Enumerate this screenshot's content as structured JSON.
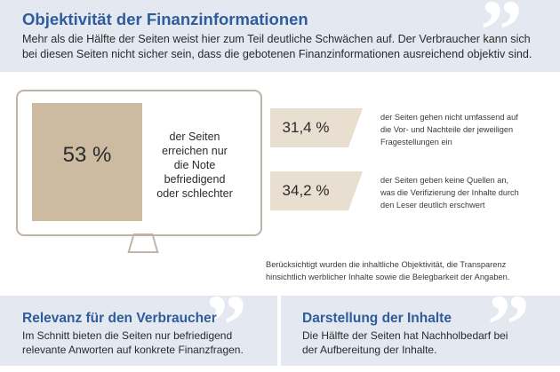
{
  "header": {
    "title": "Objektivität der Finanzinformationen",
    "text_line1": "Mehr als die Hälfte der Seiten weist hier zum Teil deutliche Schwächen auf. Der Verbraucher kann sich",
    "text_line2": "bei diesen Seiten nicht sicher sein, dass die gebotenen Finanzinformationen ausreichend objektiv sind."
  },
  "monitor": {
    "value": "53 %",
    "label_lines": [
      "der Seiten",
      "erreichen nur",
      "die Note",
      "befriedigend",
      "oder schlechter"
    ]
  },
  "stats": [
    {
      "value": "31,4 %",
      "desc_lines": [
        "der Seiten gehen nicht umfassend auf",
        "die Vor- und Nachteile der jeweiligen",
        "Fragestellungen ein"
      ]
    },
    {
      "value": "34,2 %",
      "desc_lines": [
        "der Seiten geben keine Quellen an,",
        "was die Verifizierung der Inhalte durch",
        "den Leser deutlich erschwert"
      ]
    }
  ],
  "note": {
    "line1": "Berücksichtigt wurden die inhaltliche Objektivität, die Transparenz",
    "line2": "hinsichtlich werblicher Inhalte sowie die Belegbarkeit der Angaben."
  },
  "bottom_left": {
    "title": "Relevanz für den Verbraucher",
    "line1": "Im Schnitt bieten die Seiten nur befriedigend",
    "line2": "relevante Anworten auf konkrete Finanzfragen."
  },
  "bottom_right": {
    "title": "Darstellung der Inhalte",
    "line1": "Die Hälfte der Seiten hat Nachholbedarf bei",
    "line2": "der Aufbereitung der Inhalte."
  },
  "icons": {
    "quote": "quotation-mark-icon",
    "monitor": "monitor-icon"
  },
  "colors": {
    "title_blue": "#2f5c9b",
    "band_blue": "#e3e8f1",
    "beige": "#ccbaa1",
    "monitor_outline": "#bdb4a6"
  }
}
